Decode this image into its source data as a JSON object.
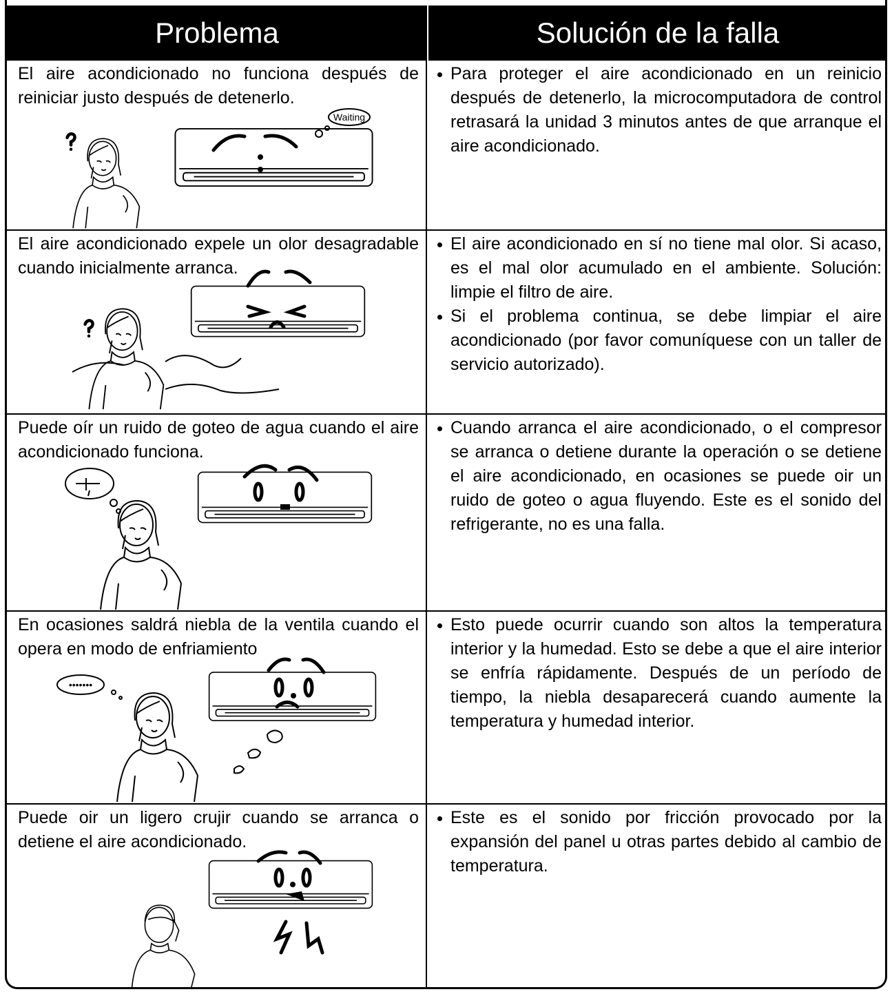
{
  "header": {
    "problem": "Problema",
    "solution": "Solución de la falla"
  },
  "rows": [
    {
      "problem": "El aire acondicionado no funciona después de reiniciar justo después de detenerlo.",
      "illustration_label": "Waiting",
      "solutions": [
        "Para proteger el aire acondicionado en un reinicio después de detenerlo, la microcomputadora de control retrasará la unidad 3 minutos antes de que arranque el aire acondicionado."
      ]
    },
    {
      "problem": "El aire acondicionado expele un olor desagradable cuando inicialmente arranca.",
      "solutions": [
        "El aire acondicionado en sí no tiene mal olor. Si acaso, es el mal olor acumulado en el ambiente. Solución: limpie el filtro de aire.",
        "Si el problema continua, se debe limpiar el aire acondicionado (por favor comuníquese con un taller de servicio autorizado)."
      ]
    },
    {
      "problem": "Puede oír un ruido de goteo de agua cuando el aire acondicionado funciona.",
      "solutions": [
        "Cuando arranca el aire acondicionado, o el compresor se arranca o detiene durante la operación o se detiene el aire acondicionado, en ocasiones se puede oir un ruido de goteo o agua fluyendo. Este es el sonido del refrigerante, no es una falla."
      ]
    },
    {
      "problem": "En ocasiones saldrá niebla de la ventila cuando el opera en modo de enfriamiento",
      "solutions": [
        "Esto puede ocurrir cuando son altos la temperatura interior y la humedad. Esto se debe a que el aire interior se enfría rápidamente. Después de un período de tiempo, la niebla desaparecerá cuando aumente la temperatura y humedad interior."
      ]
    },
    {
      "problem": "Puede oir un ligero crujir cuando se arranca o detiene el aire acondicionado.",
      "solutions": [
        "Este es el sonido por fricción provocado por la expansión del panel u otras partes debido al cambio de temperatura."
      ]
    }
  ]
}
